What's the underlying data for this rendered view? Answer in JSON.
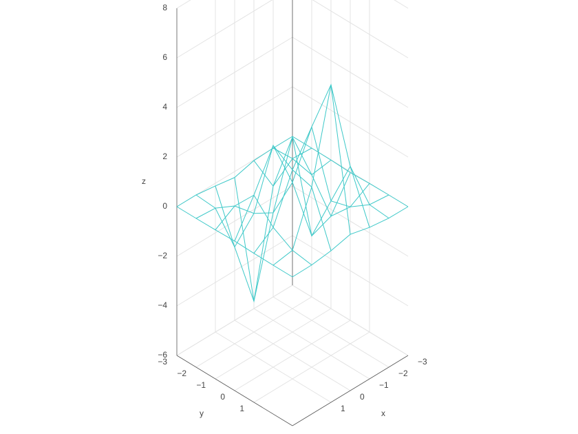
{
  "chart_data": {
    "type": "surface",
    "x": [
      -3,
      -2,
      -1,
      0,
      1,
      2,
      3
    ],
    "y": [
      -3,
      -2,
      -1,
      0,
      1,
      2,
      3
    ],
    "z": [
      [
        0,
        0.0,
        -0.03,
        -0.24,
        -0.11,
        0.0,
        0
      ],
      [
        0,
        0.05,
        -0.59,
        -4.76,
        -2.1,
        -0.06,
        0
      ],
      [
        -0.01,
        -0.13,
        1.86,
        -0.72,
        -0.27,
        0.5,
        0.01
      ],
      [
        -0.04,
        -1.33,
        -1.65,
        0.98,
        2.94,
        1.41,
        0.03
      ],
      [
        -0.01,
        -0.48,
        0.23,
        3.69,
        2.43,
        0.58,
        0.01
      ],
      [
        0,
        0.08,
        2.1,
        5.86,
        2.21,
        0.13,
        0
      ],
      [
        0,
        0.01,
        0.11,
        0.3,
        0.11,
        0.01,
        0
      ]
    ],
    "color": "#3cc8c8",
    "xlabel": "x",
    "ylabel": "y",
    "zlabel": "z",
    "xlim": [
      -3,
      3
    ],
    "ylim": [
      -3,
      3
    ],
    "zlim": [
      -6,
      8
    ],
    "xticks": [
      {
        "value": -3,
        "label": "−3"
      },
      {
        "value": -2,
        "label": "−2"
      },
      {
        "value": -1,
        "label": "−1"
      },
      0,
      1
    ],
    "yticks": [
      {
        "value": -3,
        "label": "−3"
      },
      {
        "value": -2,
        "label": "−2"
      },
      {
        "value": -1,
        "label": "−1"
      },
      0,
      1
    ],
    "zticks": [
      {
        "value": -6,
        "label": "−6"
      },
      {
        "value": -4,
        "label": "−4"
      },
      {
        "value": -2,
        "label": "−2"
      },
      0,
      2,
      4,
      6,
      8
    ],
    "grid": true
  }
}
